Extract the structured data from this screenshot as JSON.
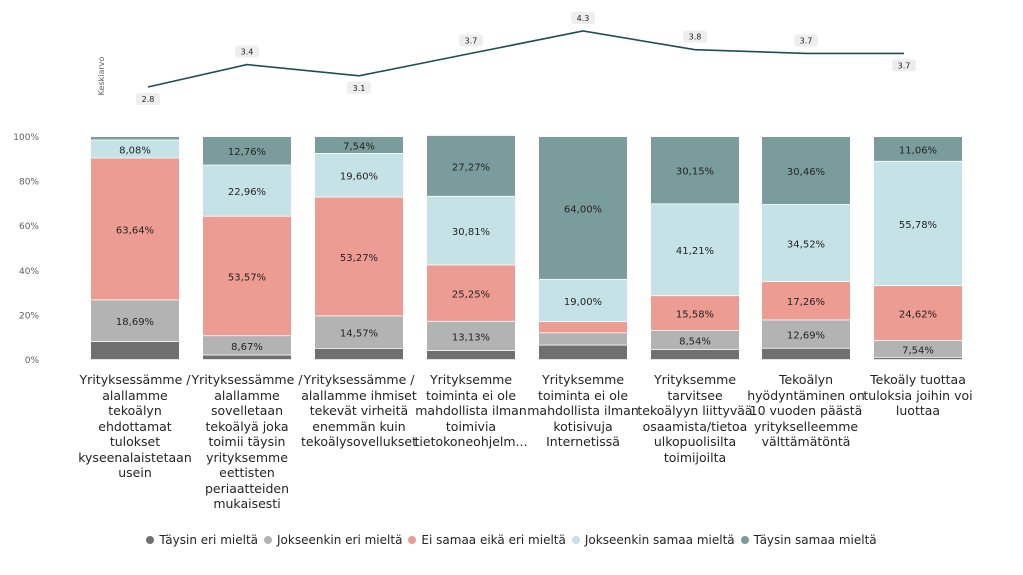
{
  "chart_data": [
    {
      "type": "line",
      "ylabel": "Keskiarvo",
      "values": [
        2.8,
        3.4,
        3.1,
        3.7,
        4.3,
        3.8,
        3.7,
        3.7
      ],
      "value_labels": [
        "2.8",
        "3.4",
        "3.1",
        "3.7",
        "4.3",
        "3.8",
        "3.7",
        "3.7"
      ],
      "color": "#1f4e57"
    },
    {
      "type": "bar",
      "stacked": "100%",
      "categories": [
        "Yrityksessämme / alallamme tekoälyn ehdottamat tulokset kyseenalaistetaan usein",
        "Yrityksessämme / alallamme sovelletaan tekoälyä joka toimii täysin yrityksemme eettisten periaatteiden mukaisesti",
        "Yrityksessämme / alallamme ihmiset tekevät virheitä enemmän kuin tekoälysovellukset",
        "Yrityksemme toiminta ei ole mahdollista ilman toimivia tietokoneohjelm...",
        "Yrityksemme toiminta ei ole mahdollista ilman kotisivuja Internetissä",
        "Yrityksemme tarvitsee tekoälyyn liittyvää osaamista/tietoa ulkopuolisilta toimijoilta",
        "Tekoälyn hyödyntäminen on 10 vuoden päästä yritykselleemme välttämätöntä",
        "Tekoäly tuottaa tuloksia joihin voi luottaa"
      ],
      "y_ticks": [
        "0%",
        "20%",
        "40%",
        "60%",
        "80%",
        "100%"
      ],
      "series": [
        {
          "name": "Täysin eri mieltä",
          "color": "#707070",
          "values": [
            8.08,
            2.04,
            5.03,
            4.04,
            6.5,
            4.52,
            5.08,
            1.0
          ],
          "labels": [
            "",
            "",
            "",
            "",
            "",
            "",
            "",
            ""
          ]
        },
        {
          "name": "Jokseenkin eri mieltä",
          "color": "#b3b3b3",
          "values": [
            18.69,
            8.67,
            14.57,
            13.13,
            5.5,
            8.54,
            12.69,
            7.54
          ],
          "labels": [
            "18,69%",
            "8,67%",
            "14,57%",
            "13,13%",
            "",
            "8,54%",
            "12,69%",
            "7,54%"
          ]
        },
        {
          "name": "Ei samaa eikä eri mieltä",
          "color": "#ec9c92",
          "values": [
            63.64,
            53.57,
            53.27,
            25.25,
            5.0,
            15.58,
            17.26,
            24.62
          ],
          "labels": [
            "63,64%",
            "53,57%",
            "53,27%",
            "25,25%",
            "",
            "15,58%",
            "17,26%",
            "24,62%"
          ]
        },
        {
          "name": "Jokseenkin samaa mieltä",
          "color": "#c5e3e7",
          "values": [
            8.08,
            22.96,
            19.6,
            30.81,
            19.0,
            41.21,
            34.52,
            55.78
          ],
          "labels": [
            "8,08%",
            "22,96%",
            "19,60%",
            "30,81%",
            "19,00%",
            "41,21%",
            "34,52%",
            "55,78%"
          ]
        },
        {
          "name": "Täysin samaa mieltä",
          "color": "#7a9c9c",
          "values": [
            1.51,
            12.76,
            7.54,
            27.27,
            64.0,
            30.15,
            30.46,
            11.06
          ],
          "labels": [
            "",
            "12,76%",
            "7,54%",
            "27,27%",
            "64,00%",
            "30,15%",
            "30,46%",
            "11,06%"
          ]
        }
      ]
    }
  ]
}
